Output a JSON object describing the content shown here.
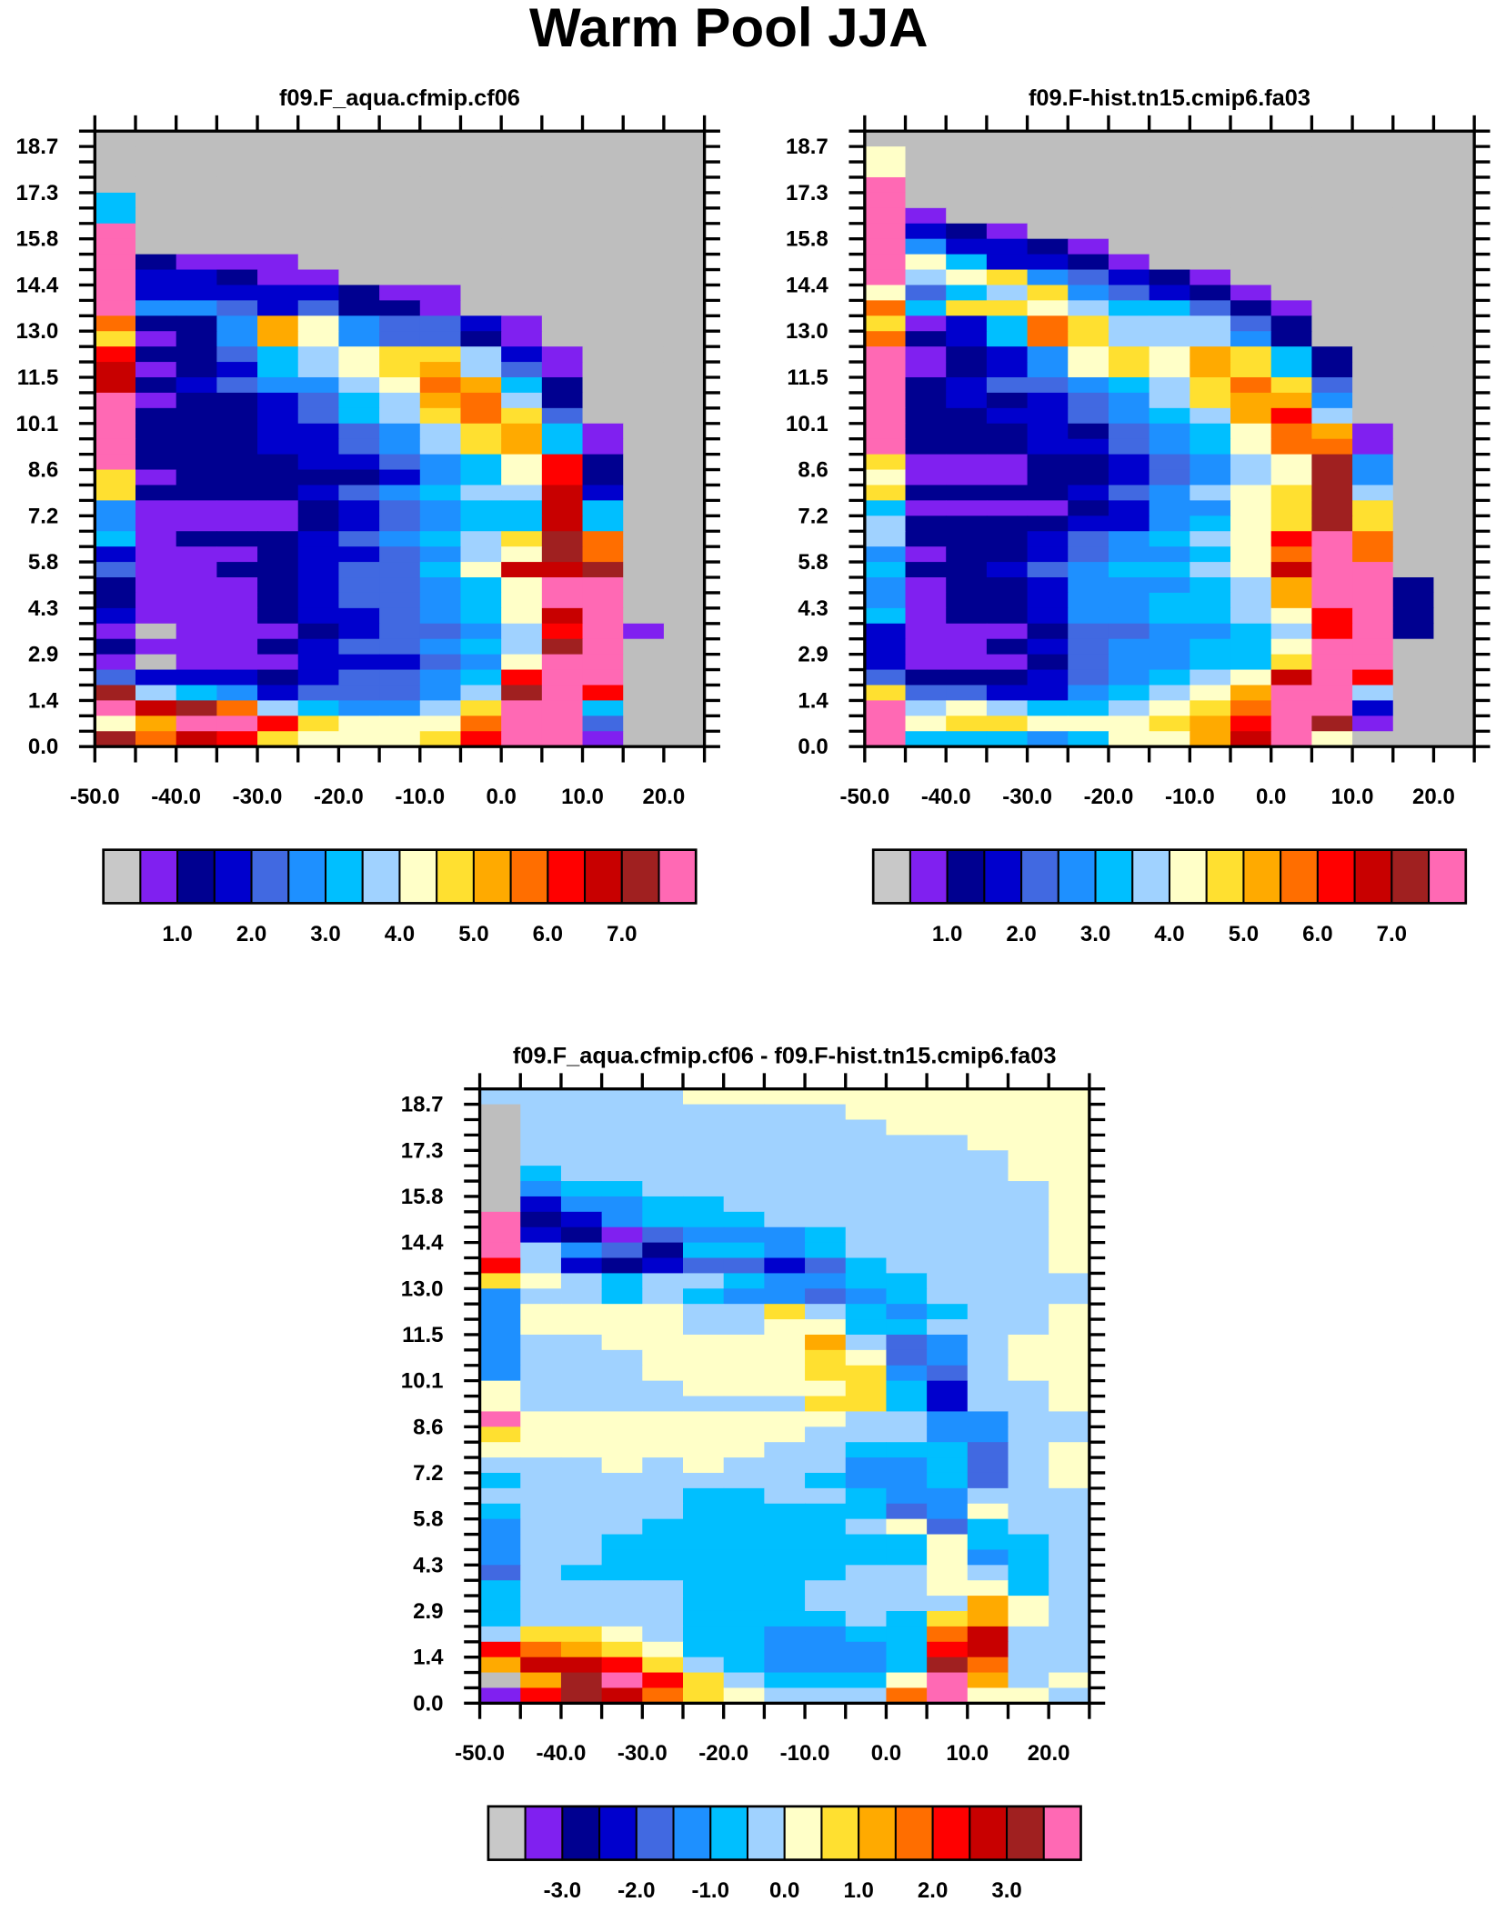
{
  "title": "Warm Pool JJA",
  "palette": [
    "#C8C8C8",
    "#8020F0",
    "#000090",
    "#0000CD",
    "#4169E1",
    "#1E90FF",
    "#00BFFF",
    "#A0D2FF",
    "#FFFFC8",
    "#FFE030",
    "#FFAA00",
    "#FF6E00",
    "#FF0000",
    "#C80000",
    "#A02020",
    "#FF69B4"
  ],
  "missing_color": "#BEBEBE",
  "chart_data": [
    {
      "type": "heatmap",
      "title": "f09.F_aqua.cfmip.cf06",
      "xlim": [
        -50,
        25
      ],
      "ylim": [
        0,
        19.2
      ],
      "x_step": 5,
      "y_step": 0.48,
      "xticklabels": [
        "-50.0",
        "-40.0",
        "-30.0",
        "-20.0",
        "-10.0",
        "0.0",
        "10.0",
        "20.0"
      ],
      "xtick_values": [
        -50,
        -40,
        -30,
        -20,
        -10,
        0,
        10,
        20
      ],
      "yticklabels": [
        "0.0",
        "1.4",
        "2.9",
        "4.3",
        "5.8",
        "7.2",
        "8.6",
        "10.1",
        "11.5",
        "13.0",
        "14.4",
        "15.8",
        "17.3",
        "18.7"
      ],
      "colorbar_labels": [
        "1.0",
        "2.0",
        "3.0",
        "4.0",
        "5.0",
        "6.0",
        "7.0"
      ],
      "level_index_rows_top_to_bottom": [
        "000000000000000",
        "000000000000000",
        "000000000000000",
        "000000000000000",
        "600000000000000",
        "600000000000000",
        "f00000000000000",
        "f00000000000000",
        "f21110000000000",
        "f33211000000000",
        "f33333211000000",
        "f55434221000000",
        "b225a8544310000",
        "9125a8544210000",
        "c22467899731000",
        "d1236789a741000",
        "d2345578ba62000",
        "f1223467ab72000",
        "f22234679b94000",
        "f222334579a6100",
        "f222334579a6100",
        "f2222334568c200",
        "91222223568c200",
        "92222345677d300",
        "51111234566d600",
        "51111234566d600",
        "61222345679eb00",
        "31112334578eb00",
        "4112234468dde00",
        "21112344568ff00",
        "21112344568ff00",
        "31112334568df00",
        "10111234457cf10",
        "21112344567ef00",
        "10111333458ff00",
        "4333234456cff00",
        "e765344457efc00",
        "fdeb765579ff600",
        "8affc9888bff400",
        "ebdc98889cff100"
      ]
    },
    {
      "type": "heatmap",
      "title": "f09.F-hist.tn15.cmip6.fa03",
      "xlim": [
        -50,
        25
      ],
      "ylim": [
        0,
        19.2
      ],
      "x_step": 5,
      "y_step": 0.48,
      "xticklabels": [
        "-50.0",
        "-40.0",
        "-30.0",
        "-20.0",
        "-10.0",
        "0.0",
        "10.0",
        "20.0"
      ],
      "xtick_values": [
        -50,
        -40,
        -30,
        -20,
        -10,
        0,
        10,
        20
      ],
      "yticklabels": [
        "0.0",
        "1.4",
        "2.9",
        "4.3",
        "5.8",
        "7.2",
        "8.6",
        "10.1",
        "11.5",
        "13.0",
        "14.4",
        "15.8",
        "17.3",
        "18.7"
      ],
      "colorbar_labels": [
        "1.0",
        "2.0",
        "3.0",
        "4.0",
        "5.0",
        "6.0",
        "7.0"
      ],
      "level_index_rows_top_to_bottom": [
        "000000000000000",
        "800000000000000",
        "800000000000000",
        "f00000000000000",
        "f00000000000000",
        "f10000000000000",
        "f32100000000000",
        "f53321000000000",
        "f86332100000000",
        "f78954321000000",
        "846795432100000",
        "b69987664210000",
        "9136b9777420000",
        "b236b9777520000",
        "f1235898a962000",
        "f1235898a962000",
        "f23445679b94000",
        "f23234579aa5000",
        "f22334567ac7000",
        "f222324568ba100",
        "f222334568bb100",
        "91112234578e500",
        "81112234578e500",
        "92222345789e700",
        "61111235589e900",
        "72222335689e900",
        "7222345678cfb00",
        "5122345568bfb00",
        "6223456678dff00",
        "5122355567aff20",
        "5122355667aff20",
        "61223556678cf20",
        "31112445567cf20",
        "31123455668ff00",
        "31112455669ff00",
        "4222345678dfc00",
        "944335678aff700",
        "f78766789bff300",
        "f8998889acfe100",
        "f6665688adf8000"
      ]
    },
    {
      "type": "heatmap",
      "title": "f09.F_aqua.cfmip.cf06 - f09.F-hist.tn15.cmip6.fa03",
      "xlim": [
        -50,
        25
      ],
      "ylim": [
        0,
        19.2
      ],
      "x_step": 5,
      "y_step": 0.48,
      "xticklabels": [
        "-50.0",
        "-40.0",
        "-30.0",
        "-20.0",
        "-10.0",
        "0.0",
        "10.0",
        "20.0"
      ],
      "xtick_values": [
        -50,
        -40,
        -30,
        -20,
        -10,
        0,
        10,
        20
      ],
      "yticklabels": [
        "0.0",
        "1.4",
        "2.9",
        "4.3",
        "5.8",
        "7.2",
        "8.6",
        "10.1",
        "11.5",
        "13.0",
        "14.4",
        "15.8",
        "17.3",
        "18.7"
      ],
      "colorbar_labels": [
        "-3.0",
        "-2.0",
        "-1.0",
        "0.0",
        "1.0",
        "2.0",
        "3.0"
      ],
      "level_index_rows_top_to_bottom": [
        "777778888888888",
        "077777777888888",
        "077777777788888",
        "077777777777888",
        "077777777777788",
        "067777777777788",
        "056677777777778",
        "035566777777778",
        "f23566677777778",
        "f32145556777778",
        "f75426656777778",
        "c73234434677778",
        "987677655667777",
        "577676554567777",
        "588887797656778",
        "588887788667778",
        "57788888a745788",
        "577788889845788",
        "577788889954788",
        "877778888963778",
        "877777779963778",
        "f88888888775577",
        "988888887775577",
        "888888877666478",
        "777878777556478",
        "677777776556478",
        "777776677655777",
        "677776666645877",
        "577766666784677",
        "577666666668667",
        "577666666668567",
        "476666666778767",
        "677776667778867",
        "677776667777a87",
        "677776666769a87",
        "79987665566bd77",
        "cba98665556cd77",
        "addc9765556eb77",
        "0aefc976668fa78",
        "1cedb98777bf887"
      ]
    }
  ]
}
